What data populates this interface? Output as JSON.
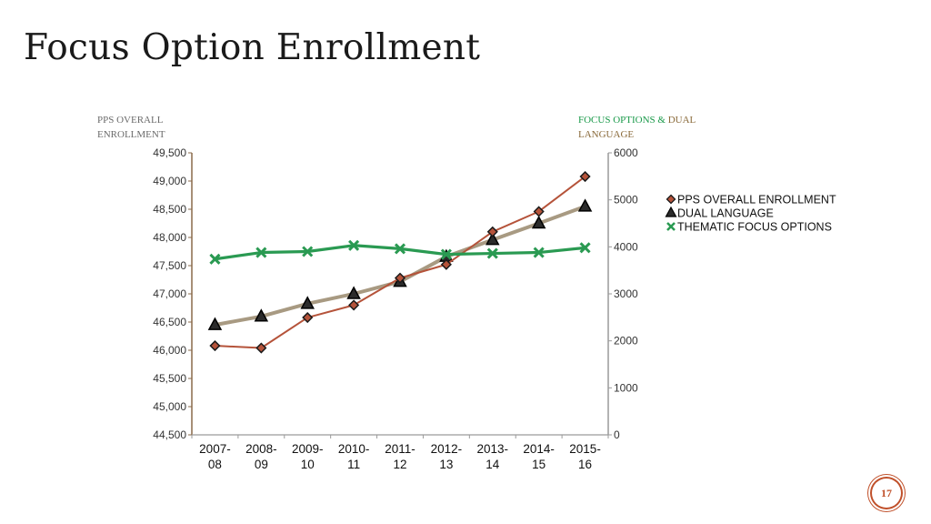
{
  "slide": {
    "title": "Focus Option Enrollment",
    "page_number": "17",
    "left_axis_caption_line1": "PPS OVERALL",
    "left_axis_caption_line2": "ENROLLMENT",
    "right_axis_caption_part1": "FOCUS OPTIONS &",
    "right_axis_caption_part2": " DUAL",
    "right_axis_caption_line2": "LANGUAGE"
  },
  "colors": {
    "overall": "#b5533a",
    "dual": "#a89a82",
    "thematic": "#2a9a52",
    "left_axis": "#8a6a4a",
    "right_axis": "#9a9a9a",
    "caption_green": "#1a9a4a"
  },
  "chart_data": {
    "type": "line",
    "categories": [
      [
        "2007-",
        "08"
      ],
      [
        "2008-",
        "09"
      ],
      [
        "2009-",
        "10"
      ],
      [
        "2010-",
        "11"
      ],
      [
        "2011-",
        "12"
      ],
      [
        "2012-",
        "13"
      ],
      [
        "2013-",
        "14"
      ],
      [
        "2014-",
        "15"
      ],
      [
        "2015-",
        "16"
      ]
    ],
    "y_left": {
      "min": 44500,
      "max": 49500,
      "step": 500,
      "tick_labels": [
        "44,500",
        "45,000",
        "45,500",
        "46,000",
        "46,500",
        "47,000",
        "47,500",
        "48,000",
        "48,500",
        "49,000",
        "49,500"
      ]
    },
    "y_right": {
      "min": 0,
      "max": 6000,
      "step": 1000,
      "tick_labels": [
        "0",
        "1000",
        "2000",
        "3000",
        "4000",
        "5000",
        "6000"
      ]
    },
    "series": [
      {
        "name": "PPS OVERALL ENROLLMENT",
        "axis": "left",
        "marker": "diamond",
        "values": [
          46080,
          46040,
          46580,
          46800,
          47280,
          47520,
          48100,
          48460,
          49080
        ]
      },
      {
        "name": "DUAL LANGUAGE",
        "axis": "right",
        "marker": "triangle",
        "values": [
          2340,
          2520,
          2790,
          3000,
          3260,
          3790,
          4150,
          4500,
          4860
        ]
      },
      {
        "name": "THEMATIC FOCUS OPTIONS",
        "axis": "right",
        "marker": "x",
        "values": [
          3740,
          3880,
          3900,
          4030,
          3960,
          3840,
          3860,
          3880,
          3980
        ]
      }
    ],
    "legend_position": "right",
    "grid": false
  }
}
